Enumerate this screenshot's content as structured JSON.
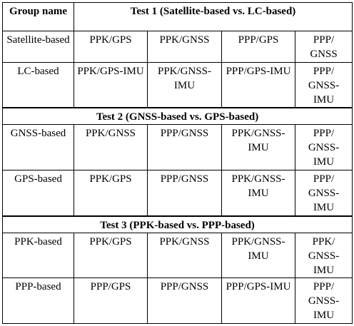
{
  "table": {
    "group_header": "Group name",
    "test1": {
      "title": "Test 1 (Satellite-based vs. LC-based)",
      "rows": [
        {
          "group": "Satellite-based",
          "cells": [
            "PPK/GPS",
            "PPK/GNSS",
            "PPP/GPS",
            "PPP/ GNSS"
          ]
        },
        {
          "group": "LC-based",
          "cells": [
            "PPK/GPS-IMU",
            "PPK/GNSS-IMU",
            "PPP/GPS-IMU",
            "PPP/ GNSS-IMU"
          ]
        }
      ]
    },
    "test2": {
      "title": "Test 2 (GNSS-based vs. GPS-based)",
      "rows": [
        {
          "group": "GNSS-based",
          "cells": [
            "PPK/GNSS",
            "PPP/GNSS",
            "PPK/GNSS-IMU",
            "PPP/ GNSS-IMU"
          ]
        },
        {
          "group": "GPS-based",
          "cells": [
            "PPK/GPS",
            "PPP/GNSS",
            "PPK/GNSS-IMU",
            "PPP/ GNSS-IMU"
          ]
        }
      ]
    },
    "test3": {
      "title": "Test 3 (PPK-based vs. PPP-based)",
      "rows": [
        {
          "group": "PPK-based",
          "cells": [
            "PPK/GPS",
            "PPK/GNSS",
            "PPK/GNSS-IMU",
            "PPK/ GNSS-IMU"
          ]
        },
        {
          "group": "PPP-based",
          "cells": [
            "PPP/GPS",
            "PPP/GNSS",
            "PPP/GPS-IMU",
            "PPP/ GNSS-IMU"
          ]
        }
      ]
    }
  }
}
